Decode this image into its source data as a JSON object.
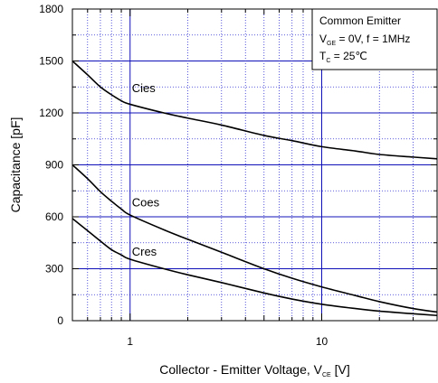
{
  "chart_data": {
    "type": "line",
    "x_scale": "log",
    "xlim": [
      0.5,
      40
    ],
    "ylim": [
      0,
      1800
    ],
    "xticks": [
      {
        "value": 1,
        "label": "1"
      },
      {
        "value": 10,
        "label": "10"
      }
    ],
    "yticks": [
      {
        "value": 0,
        "label": "0"
      },
      {
        "value": 300,
        "label": "300"
      },
      {
        "value": 600,
        "label": "600"
      },
      {
        "value": 900,
        "label": "900"
      },
      {
        "value": 1200,
        "label": "1200"
      },
      {
        "value": 1500,
        "label": "1500"
      },
      {
        "value": 1800,
        "label": "1800"
      }
    ],
    "ylabel": "Capacitance [pF]",
    "xlabel": {
      "main": "Collector - Emitter Voltage, V",
      "sub": "CE",
      "suffix": " [V]"
    },
    "legend": {
      "line1": "Common Emitter",
      "line2": {
        "main": "V",
        "sub": "GE",
        "suffix": " = 0V, f = 1MHz"
      },
      "line3": {
        "main": "T",
        "sub": "C",
        "suffix": " = 25℃"
      },
      "placement": "top-right"
    },
    "grid": true,
    "series": [
      {
        "name": "Cies",
        "label_at": {
          "x": 1.0,
          "y": 1320
        },
        "points": [
          [
            0.5,
            1500
          ],
          [
            0.6,
            1420
          ],
          [
            0.7,
            1350
          ],
          [
            0.8,
            1305
          ],
          [
            0.9,
            1270
          ],
          [
            1,
            1250
          ],
          [
            1.5,
            1200
          ],
          [
            2,
            1170
          ],
          [
            3,
            1130
          ],
          [
            5,
            1070
          ],
          [
            7,
            1040
          ],
          [
            10,
            1005
          ],
          [
            15,
            980
          ],
          [
            20,
            960
          ],
          [
            30,
            945
          ],
          [
            40,
            935
          ]
        ]
      },
      {
        "name": "Coes",
        "label_at": {
          "x": 1.0,
          "y": 660
        },
        "points": [
          [
            0.5,
            900
          ],
          [
            0.6,
            820
          ],
          [
            0.7,
            745
          ],
          [
            0.8,
            690
          ],
          [
            0.9,
            645
          ],
          [
            1,
            610
          ],
          [
            1.5,
            525
          ],
          [
            2,
            470
          ],
          [
            3,
            395
          ],
          [
            5,
            300
          ],
          [
            7,
            245
          ],
          [
            10,
            195
          ],
          [
            15,
            145
          ],
          [
            20,
            110
          ],
          [
            30,
            70
          ],
          [
            40,
            50
          ]
        ]
      },
      {
        "name": "Cres",
        "label_at": {
          "x": 1.0,
          "y": 375
        },
        "points": [
          [
            0.5,
            590
          ],
          [
            0.6,
            520
          ],
          [
            0.7,
            460
          ],
          [
            0.8,
            410
          ],
          [
            0.9,
            380
          ],
          [
            1,
            355
          ],
          [
            1.5,
            300
          ],
          [
            2,
            265
          ],
          [
            3,
            220
          ],
          [
            5,
            160
          ],
          [
            7,
            125
          ],
          [
            10,
            95
          ],
          [
            15,
            70
          ],
          [
            20,
            55
          ],
          [
            30,
            40
          ],
          [
            40,
            30
          ]
        ]
      }
    ]
  }
}
